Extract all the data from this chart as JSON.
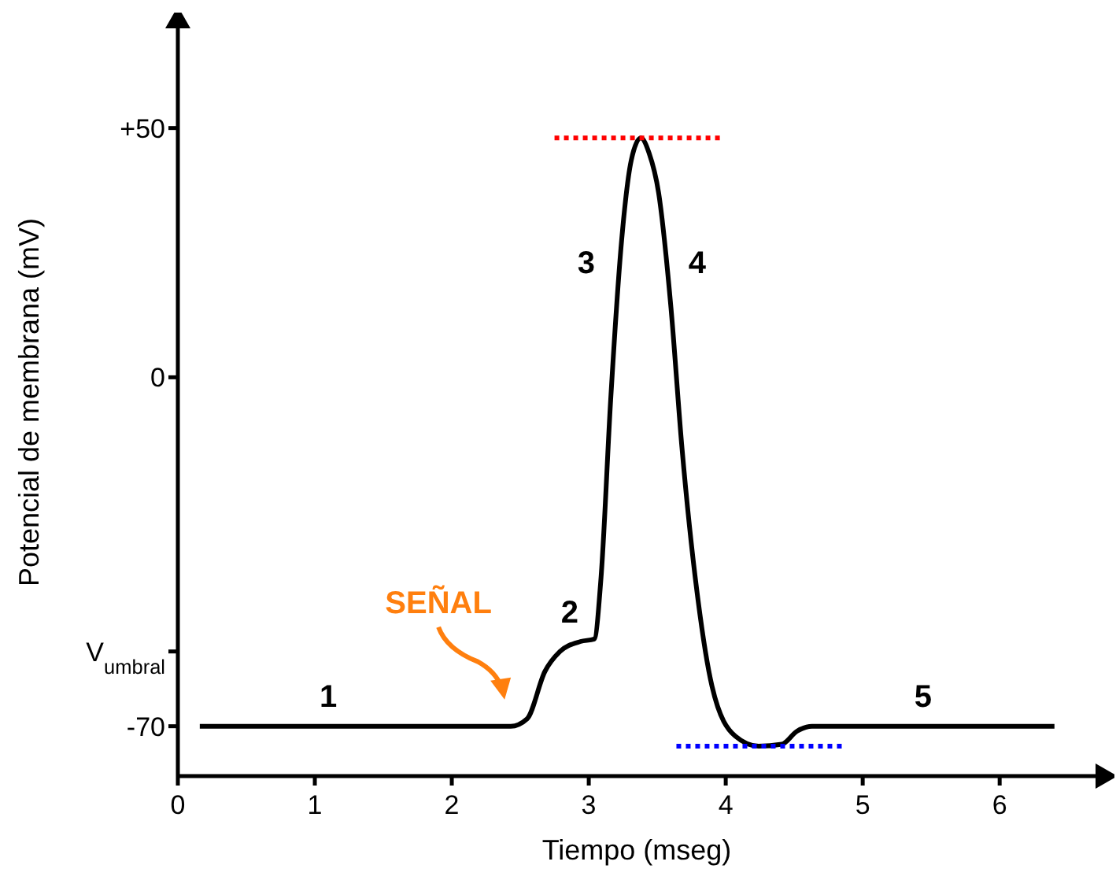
{
  "chart_data": {
    "type": "line",
    "xlabel": "Tiempo (mseg)",
    "ylabel": "Potencial de membrana (mV)",
    "x": [
      0.16,
      1.0,
      2.0,
      2.43,
      2.55,
      2.68,
      2.79,
      2.94,
      3.04,
      3.09,
      3.16,
      3.24,
      3.31,
      3.38,
      3.44,
      3.51,
      3.6,
      3.68,
      3.79,
      3.9,
      4.07,
      4.24,
      4.41,
      4.52,
      4.63,
      5.5,
      6.4
    ],
    "series": [
      {
        "color": "#000000",
        "values": [
          -70,
          -70,
          -70,
          -70,
          -68.5,
          -59,
          -55,
          -53,
          -52.5,
          -40,
          -4.5,
          27.5,
          43.5,
          48,
          45,
          37,
          14,
          -14,
          -43,
          -62,
          -72,
          -74,
          -73.6,
          -71,
          -70,
          -70,
          -70
        ]
      },
      {
        "type": "line",
        "color": "#ff0000",
        "line_style": "dotted",
        "x": [
          2.75,
          3.99
        ],
        "values": [
          48,
          48
        ]
      },
      {
        "type": "line",
        "color": "#0000ff",
        "line_style": "dotted",
        "x": [
          3.64,
          4.88
        ],
        "values": [
          -74,
          -74
        ]
      }
    ],
    "xlim": [
      0,
      6.7
    ],
    "xticks": [
      0,
      1,
      2,
      3,
      4,
      5,
      6
    ],
    "ylim": [
      -80,
      70
    ],
    "yticks": [
      -70,
      {
        "value": -55,
        "label": "V$_{umbral}$"
      },
      0,
      {
        "value": 50,
        "label": "+50"
      }
    ],
    "annotations": [
      "1",
      "2",
      "3",
      "4",
      "5",
      "SEÑAL"
    ]
  }
}
